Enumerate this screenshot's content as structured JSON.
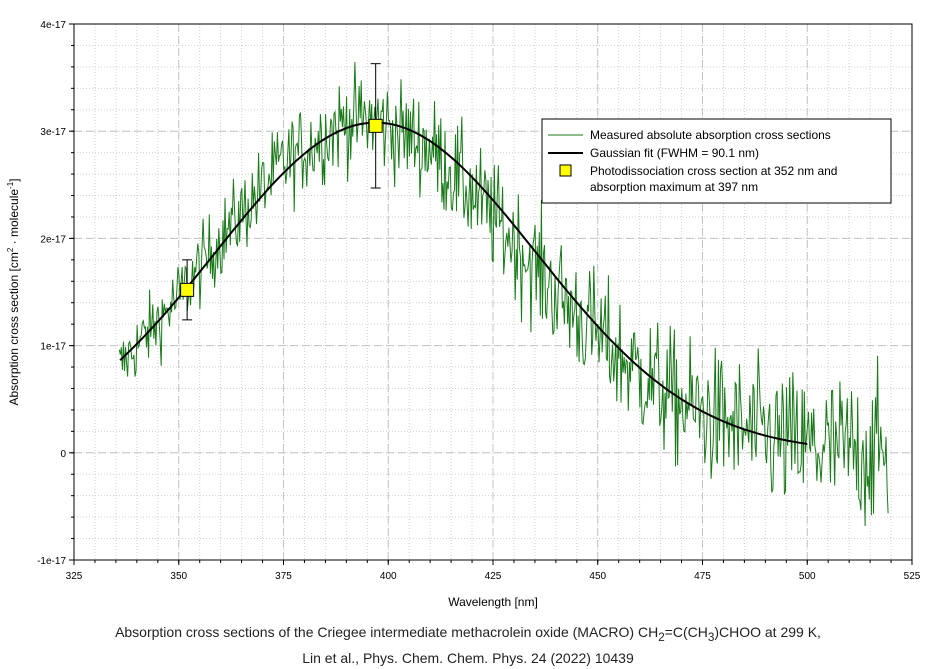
{
  "chart_data": {
    "type": "line",
    "xlabel": "Wavelength [nm]",
    "ylabel": "Absorption cross section [cm2 · molecule-1]",
    "xlim": [
      325,
      525
    ],
    "ylim": [
      -1e-17,
      4e-17
    ],
    "x_ticks": [
      325,
      350,
      375,
      400,
      425,
      450,
      475,
      500,
      525
    ],
    "y_ticks": [
      -1e-17,
      0,
      1e-17,
      2e-17,
      3e-17,
      4e-17
    ],
    "x_tick_labels": [
      "325",
      "350",
      "375",
      "400",
      "425",
      "450",
      "475",
      "500",
      "525"
    ],
    "y_tick_labels": [
      "-1e-17",
      "0",
      "1e-17",
      "2e-17",
      "3e-17",
      "4e-17"
    ],
    "grid": true,
    "series": [
      {
        "name": "Measured absolute absorption cross sections",
        "kind": "noisy-line",
        "color": "#1a7a1a",
        "x_range": [
          335.8,
          519.5
        ],
        "step": 0.25,
        "noise_note": "noise amplitude grows toward longer wavelengths",
        "anchor_points": [
          [
            336,
            8e-18
          ],
          [
            340,
            1e-17
          ],
          [
            350,
            1.45e-17
          ],
          [
            360,
            2e-17
          ],
          [
            375,
            2.7e-17
          ],
          [
            390,
            3.1e-17
          ],
          [
            397,
            3.1e-17
          ],
          [
            410,
            2.85e-17
          ],
          [
            425,
            2.2e-17
          ],
          [
            440,
            1.5e-17
          ],
          [
            455,
            9e-18
          ],
          [
            470,
            4.5e-18
          ],
          [
            485,
            2e-18
          ],
          [
            500,
            5e-19
          ],
          [
            519,
            0.0
          ]
        ]
      },
      {
        "name": "Gaussian fit (FWHM = 90.1 nm)",
        "kind": "line",
        "color": "#000000",
        "x_range": [
          336,
          500
        ],
        "center": 397,
        "fwhm": 90.1,
        "amplitude": 3.08e-17,
        "offset": 0
      },
      {
        "name": "Photodissociation cross section at 352 nm and absorption maximum at 397 nm",
        "kind": "points",
        "color": "#ffff00",
        "points": [
          {
            "x": 352,
            "y": 1.52e-17,
            "err": 2.8e-18
          },
          {
            "x": 397,
            "y": 3.05e-17,
            "err": 5.8e-18
          }
        ]
      }
    ],
    "legend": {
      "position": "top-right",
      "entries": [
        "Measured absolute absorption cross sections",
        "Gaussian fit (FWHM = 90.1 nm)",
        "Photodissociation cross section at 352 nm and",
        "absorption maximum at 397 nm"
      ]
    }
  },
  "caption": {
    "line1_pre": "Absorption cross sections of the Criegee intermediate methacrolein oxide (MACRO) CH",
    "line1_sub1": "2",
    "line1_mid": "=C(CH",
    "line1_sub2": "3",
    "line1_post": ")CHOO at 299 K,",
    "line2": "Lin et al., Phys. Chem. Chem. Phys. 24 (2022) 10439"
  }
}
